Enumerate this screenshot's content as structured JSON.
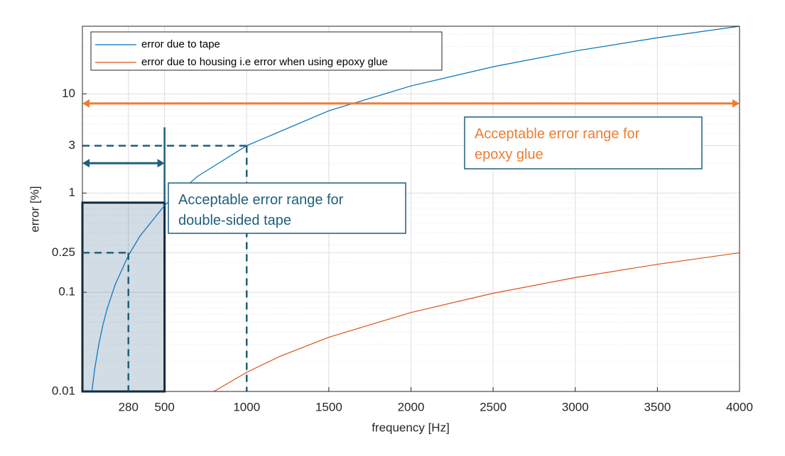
{
  "chart_data": {
    "type": "line",
    "xlabel": "frequency [Hz]",
    "ylabel": "error [%]",
    "xlim": [
      0,
      4000
    ],
    "xticks": [
      280,
      500,
      1000,
      1500,
      2000,
      2500,
      3000,
      3500,
      4000
    ],
    "ylim": [
      0.01,
      48
    ],
    "yticks": [
      0.01,
      0.1,
      0.25,
      1,
      3,
      10
    ],
    "log_y": true,
    "grid": true,
    "minor_grid": true,
    "legend_position": "upper left",
    "series": [
      {
        "name": "error due to tape",
        "color": "#0072bd",
        "x": [
          58,
          75,
          100,
          125,
          150,
          200,
          280,
          350,
          500,
          700,
          1000,
          1500,
          2000,
          2500,
          3000,
          3500,
          4000
        ],
        "values": [
          0.0101,
          0.0169,
          0.03,
          0.0469,
          0.0675,
          0.12,
          0.235,
          0.3675,
          0.75,
          1.47,
          3,
          6.75,
          12,
          18.75,
          27,
          36.75,
          48
        ]
      },
      {
        "name": "error due to housing i.e error when using epoxy glue",
        "color": "#d95319",
        "x": [
          800,
          1000,
          1200,
          1500,
          2000,
          2500,
          3000,
          3500,
          4000
        ],
        "values": [
          0.01,
          0.0156,
          0.0225,
          0.0352,
          0.0625,
          0.0977,
          0.1406,
          0.1914,
          0.25
        ]
      }
    ],
    "shaded_region": {
      "x": [
        0,
        500
      ],
      "y": [
        0.01,
        0.8
      ],
      "color": "#1f4e79"
    },
    "reference_points": [
      {
        "x": 280,
        "y": 0.25
      },
      {
        "x": 1000,
        "y": 3
      }
    ],
    "vertical_line": {
      "x": 500,
      "y": [
        0.8,
        4.6
      ]
    },
    "arrows": [
      {
        "y": 8,
        "x": [
          0,
          4000
        ],
        "color": "#ed7d31"
      },
      {
        "y": 2,
        "x": [
          0,
          500
        ],
        "color": "#1f5f7a"
      }
    ],
    "annotations": [
      {
        "lines": [
          "Acceptable error range for",
          "epoxy glue"
        ],
        "color": "#ed7d31"
      },
      {
        "lines": [
          "Acceptable error range for",
          "double-sided tape"
        ],
        "color": "#1f5f7a"
      }
    ]
  }
}
